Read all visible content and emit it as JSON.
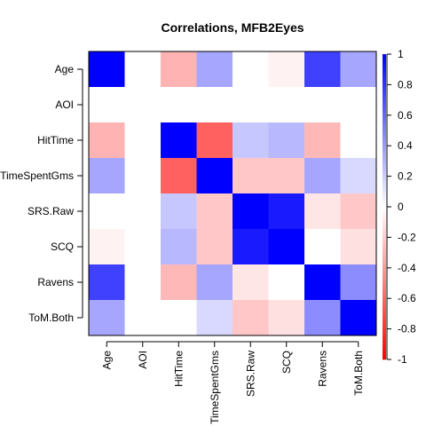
{
  "chart_data": {
    "type": "heatmap",
    "title": "Correlations, MFB2Eyes",
    "xlabel": "",
    "ylabel": "",
    "row_labels": [
      "Age",
      "AOI",
      "HitTime",
      "TimeSpentGms",
      "SRS.Raw",
      "SCQ",
      "Ravens",
      "ToM.Both"
    ],
    "col_labels": [
      "Age",
      "AOI",
      "HitTime",
      "TimeSpentGms",
      "SRS.Raw",
      "SCQ",
      "Ravens",
      "ToM.Both"
    ],
    "values": [
      [
        1.0,
        0,
        -0.3,
        0.35,
        0,
        -0.05,
        0.75,
        0.35
      ],
      [
        0,
        0,
        0,
        0,
        0,
        0,
        0,
        0
      ],
      [
        -0.3,
        0,
        1.0,
        -0.62,
        0.22,
        0.28,
        -0.28,
        0
      ],
      [
        0.35,
        0,
        -0.62,
        1.0,
        -0.22,
        -0.22,
        0.35,
        0.15
      ],
      [
        0,
        0,
        0.22,
        -0.22,
        1.0,
        0.9,
        -0.1,
        -0.22
      ],
      [
        -0.05,
        0,
        0.28,
        -0.22,
        0.9,
        1.0,
        0,
        -0.12
      ],
      [
        0.75,
        0,
        -0.28,
        0.35,
        -0.1,
        0,
        1.0,
        0.45
      ],
      [
        0.35,
        0,
        0,
        0.15,
        -0.22,
        -0.12,
        0.45,
        1.0
      ]
    ],
    "zlim": [
      -1,
      1
    ],
    "colorbar_ticks": [
      1,
      0.8,
      0.6,
      0.4,
      0.2,
      0,
      -0.2,
      -0.4,
      -0.6,
      -0.8,
      -1
    ],
    "colors": {
      "positive": "#0000ff",
      "zero": "#ffffff",
      "negative": "#ff0000"
    },
    "grid": false,
    "legend": "right colorbar"
  }
}
